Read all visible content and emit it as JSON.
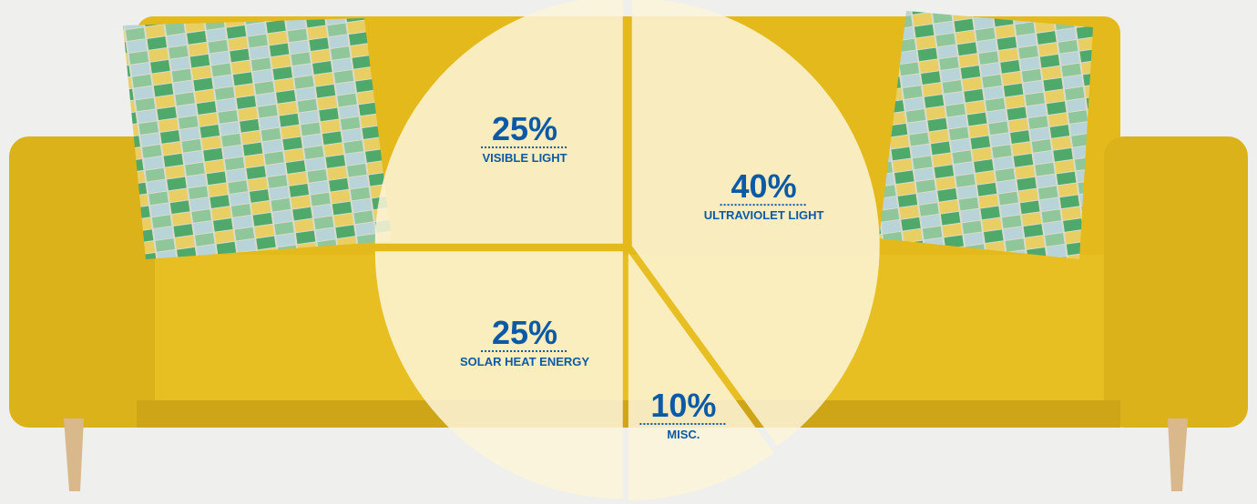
{
  "chart_data": {
    "type": "pie",
    "categories": [
      "ULTRAVIOLET LIGHT",
      "MISC.",
      "SOLAR HEAT ENERGY",
      "VISIBLE LIGHT"
    ],
    "values": [
      40,
      10,
      25,
      25
    ],
    "value_labels": [
      "40%",
      "10%",
      "25%",
      "25%"
    ],
    "color": "#fdf5d8"
  }
}
